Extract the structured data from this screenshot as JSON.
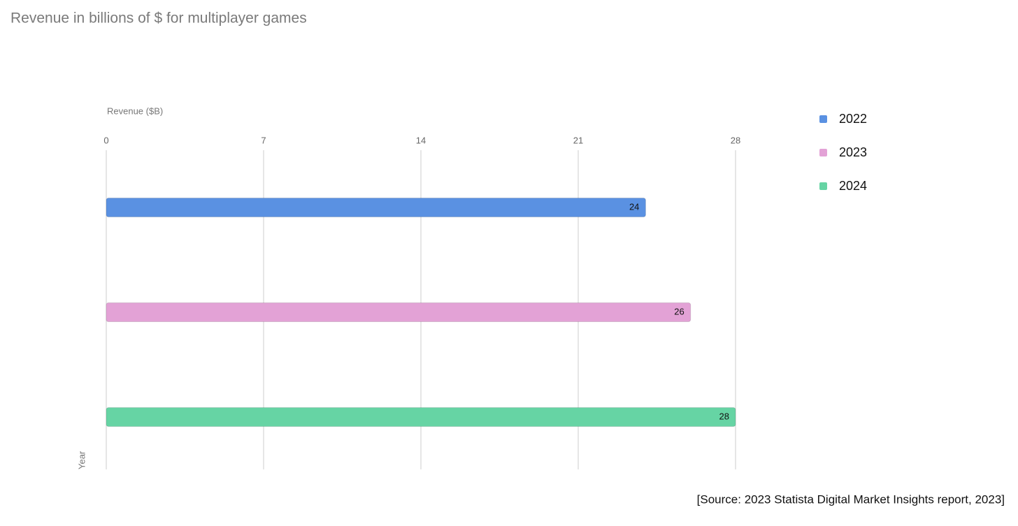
{
  "chart_data": {
    "type": "bar",
    "orientation": "horizontal",
    "title": "Revenue in billions of $ for multiplayer games",
    "x_label": "Revenue ($B)",
    "y_label": "Year",
    "categories": [
      null
    ],
    "series": [
      {
        "name": "2022",
        "color": "#5a91e2",
        "values": [
          24
        ]
      },
      {
        "name": "2023",
        "color": "#e3a2d6",
        "values": [
          26
        ]
      },
      {
        "name": "2024",
        "color": "#66d4a4",
        "values": [
          28
        ]
      }
    ],
    "xlim": [
      0,
      28
    ],
    "xticks": [
      0,
      7,
      14,
      21,
      28
    ],
    "grid": true,
    "legend": "right",
    "source": "[Source: 2023 Statista Digital Market Insights report, 2023]"
  }
}
